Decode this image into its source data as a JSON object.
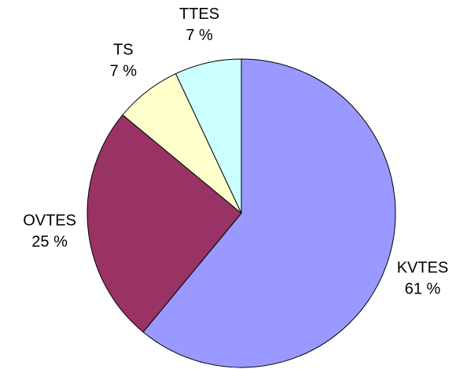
{
  "chart_data": {
    "type": "pie",
    "categories": [
      "KVTES",
      "OVTES",
      "TS",
      "TTES"
    ],
    "values": [
      61,
      25,
      7,
      7
    ],
    "value_labels": [
      "61 %",
      "25 %",
      "7 %",
      "7 %"
    ],
    "colors": [
      "#9999ff",
      "#993366",
      "#ffffcc",
      "#ccffff"
    ]
  }
}
